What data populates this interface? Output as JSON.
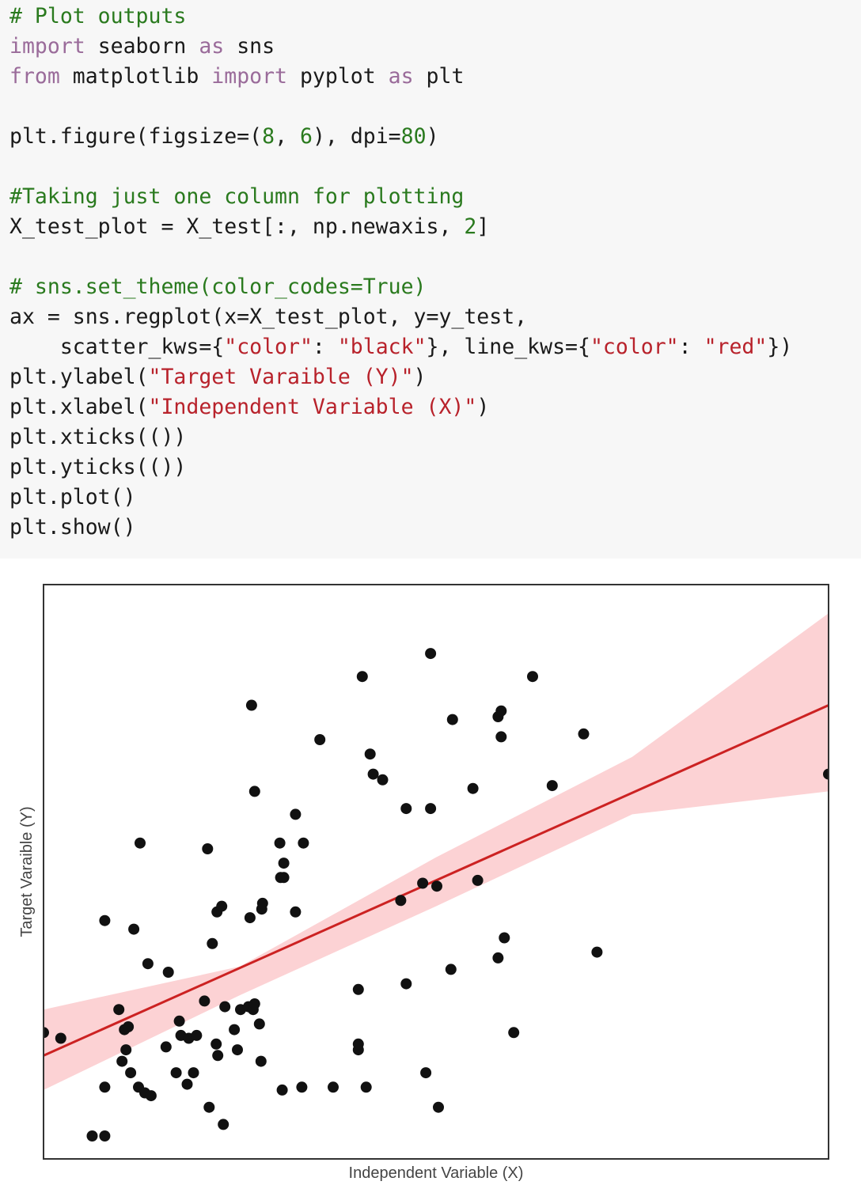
{
  "code_cell": {
    "lines": [
      [
        {
          "t": "comment",
          "text": "# Plot outputs"
        }
      ],
      [
        {
          "t": "keyword",
          "text": "import"
        },
        {
          "t": "plain",
          "text": " seaborn "
        },
        {
          "t": "keyword",
          "text": "as"
        },
        {
          "t": "plain",
          "text": " sns"
        }
      ],
      [
        {
          "t": "keyword",
          "text": "from"
        },
        {
          "t": "plain",
          "text": " matplotlib "
        },
        {
          "t": "keyword",
          "text": "import"
        },
        {
          "t": "plain",
          "text": " pyplot "
        },
        {
          "t": "keyword",
          "text": "as"
        },
        {
          "t": "plain",
          "text": " plt"
        }
      ],
      [],
      [
        {
          "t": "plain",
          "text": "plt.figure(figsize=("
        },
        {
          "t": "number",
          "text": "8"
        },
        {
          "t": "plain",
          "text": ", "
        },
        {
          "t": "number",
          "text": "6"
        },
        {
          "t": "plain",
          "text": "), dpi="
        },
        {
          "t": "number",
          "text": "80"
        },
        {
          "t": "plain",
          "text": ")"
        }
      ],
      [],
      [
        {
          "t": "comment",
          "text": "#Taking just one column for plotting"
        }
      ],
      [
        {
          "t": "plain",
          "text": "X_test_plot = X_test[:, np.newaxis, "
        },
        {
          "t": "number",
          "text": "2"
        },
        {
          "t": "plain",
          "text": "]"
        }
      ],
      [],
      [
        {
          "t": "comment",
          "text": "# sns.set_theme(color_codes=True)"
        }
      ],
      [
        {
          "t": "plain",
          "text": "ax = sns.regplot(x=X_test_plot, y=y_test,"
        }
      ],
      [
        {
          "t": "plain",
          "text": "    scatter_kws={"
        },
        {
          "t": "string",
          "text": "\"color\""
        },
        {
          "t": "plain",
          "text": ": "
        },
        {
          "t": "string",
          "text": "\"black\""
        },
        {
          "t": "plain",
          "text": "}, line_kws={"
        },
        {
          "t": "string",
          "text": "\"color\""
        },
        {
          "t": "plain",
          "text": ": "
        },
        {
          "t": "string",
          "text": "\"red\""
        },
        {
          "t": "plain",
          "text": "})"
        }
      ],
      [
        {
          "t": "plain",
          "text": "plt.ylabel("
        },
        {
          "t": "string",
          "text": "\"Target Varaible (Y)\""
        },
        {
          "t": "plain",
          "text": ")"
        }
      ],
      [
        {
          "t": "plain",
          "text": "plt.xlabel("
        },
        {
          "t": "string",
          "text": "\"Independent Variable (X)\""
        },
        {
          "t": "plain",
          "text": ")"
        }
      ],
      [
        {
          "t": "plain",
          "text": "plt.xticks(())"
        }
      ],
      [
        {
          "t": "plain",
          "text": "plt.yticks(())"
        }
      ],
      [
        {
          "t": "plain",
          "text": "plt.plot()"
        }
      ],
      [
        {
          "t": "plain",
          "text": "plt.show()"
        }
      ]
    ]
  },
  "chart_data": {
    "type": "scatter",
    "title": "",
    "xlabel": "Independent Variable (X)",
    "ylabel": "Target Varaible (Y)",
    "xlim": [
      0,
      100
    ],
    "ylim": [
      0,
      100
    ],
    "xticks": [],
    "yticks": [],
    "grid": false,
    "points": [
      [
        0,
        22
      ],
      [
        2.2,
        21
      ],
      [
        6.2,
        4
      ],
      [
        7.8,
        4
      ],
      [
        7.8,
        12.5
      ],
      [
        7.8,
        41.5
      ],
      [
        9.6,
        26
      ],
      [
        10,
        17
      ],
      [
        10.3,
        22.5
      ],
      [
        10.5,
        19
      ],
      [
        10.8,
        23
      ],
      [
        11.1,
        15
      ],
      [
        11.5,
        40
      ],
      [
        12.1,
        12.5
      ],
      [
        12.3,
        55
      ],
      [
        12.9,
        11.5
      ],
      [
        13.3,
        34
      ],
      [
        13.7,
        11
      ],
      [
        15.6,
        19.5
      ],
      [
        15.9,
        32.5
      ],
      [
        16.9,
        15
      ],
      [
        17.3,
        24
      ],
      [
        17.5,
        21.5
      ],
      [
        18.3,
        13
      ],
      [
        18.5,
        21
      ],
      [
        19.1,
        15
      ],
      [
        19.5,
        21.5
      ],
      [
        20.5,
        27.5
      ],
      [
        20.9,
        54
      ],
      [
        21.1,
        9
      ],
      [
        21.5,
        37.5
      ],
      [
        22,
        20
      ],
      [
        22.1,
        43
      ],
      [
        22.2,
        18
      ],
      [
        22.7,
        44
      ],
      [
        22.9,
        6
      ],
      [
        23.1,
        26.5
      ],
      [
        24.3,
        22.5
      ],
      [
        24.7,
        19
      ],
      [
        25.1,
        26
      ],
      [
        26.1,
        26.5
      ],
      [
        26.3,
        42
      ],
      [
        26.5,
        79
      ],
      [
        26.7,
        26
      ],
      [
        26.9,
        27
      ],
      [
        26.9,
        64
      ],
      [
        27.5,
        23.5
      ],
      [
        27.7,
        17
      ],
      [
        27.8,
        43.5
      ],
      [
        27.9,
        44.5
      ],
      [
        30.4,
        12
      ],
      [
        30.1,
        55
      ],
      [
        30.2,
        49
      ],
      [
        30.6,
        51.5
      ],
      [
        30.6,
        49
      ],
      [
        32.1,
        60
      ],
      [
        32.1,
        43
      ],
      [
        32.9,
        12.5
      ],
      [
        33.1,
        55
      ],
      [
        35.2,
        73
      ],
      [
        36.9,
        12.5
      ],
      [
        40.1,
        19
      ],
      [
        40.1,
        20
      ],
      [
        40.1,
        29.5
      ],
      [
        40.6,
        84
      ],
      [
        41.1,
        12.5
      ],
      [
        41.6,
        70.5
      ],
      [
        42,
        67
      ],
      [
        43.2,
        66
      ],
      [
        45.5,
        45
      ],
      [
        46.2,
        30.5
      ],
      [
        46.2,
        61
      ],
      [
        48.3,
        48
      ],
      [
        48.7,
        15
      ],
      [
        49.3,
        88
      ],
      [
        49.3,
        61
      ],
      [
        50.1,
        47.5
      ],
      [
        50.3,
        9
      ],
      [
        51.9,
        33
      ],
      [
        52.1,
        76.5
      ],
      [
        54.7,
        64.5
      ],
      [
        55.3,
        48.5
      ],
      [
        57.9,
        35
      ],
      [
        57.9,
        77
      ],
      [
        58.3,
        73.5
      ],
      [
        58.3,
        78
      ],
      [
        58.7,
        38.5
      ],
      [
        59.9,
        22
      ],
      [
        62.3,
        84
      ],
      [
        64.8,
        65
      ],
      [
        68.8,
        74
      ],
      [
        70.5,
        36
      ],
      [
        100,
        67
      ]
    ],
    "regression": {
      "x": [
        0,
        100
      ],
      "y": [
        18,
        79
      ]
    },
    "confidence_band": {
      "x": [
        0,
        25,
        50,
        75,
        100
      ],
      "upper": [
        26,
        33.5,
        52.5,
        70,
        95
      ],
      "lower": [
        12,
        28.5,
        44,
        60,
        64
      ]
    },
    "colors": {
      "points": "#111111",
      "line": "#cc2222",
      "band": "#fcd2d4",
      "axes": "#333333",
      "label_text": "#444444"
    }
  }
}
